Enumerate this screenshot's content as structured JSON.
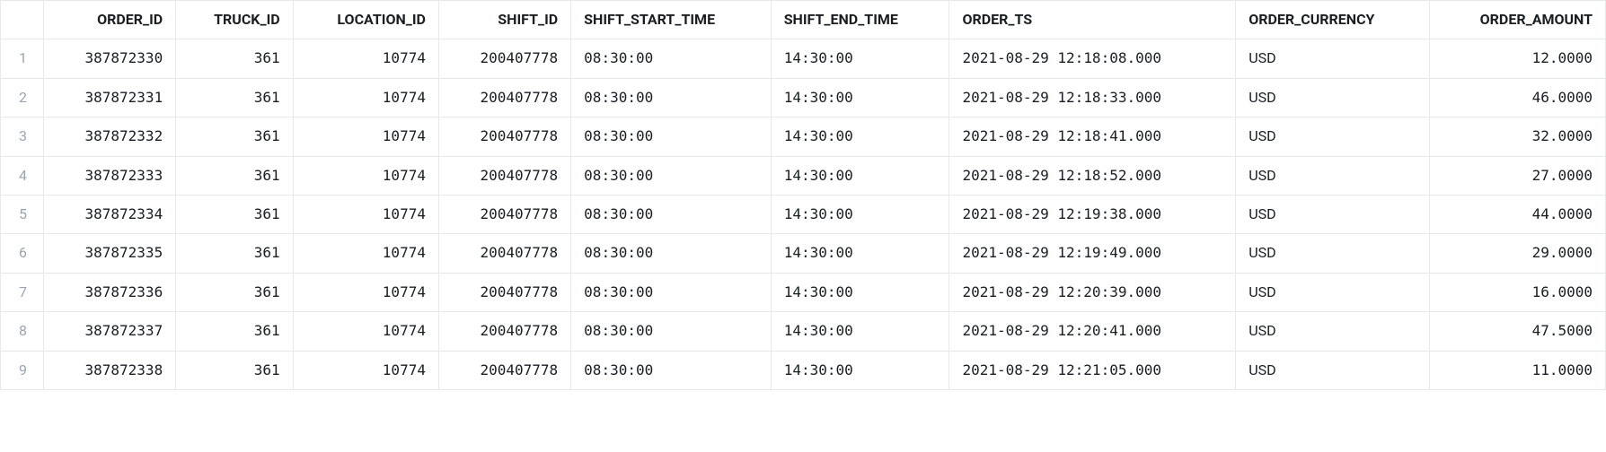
{
  "table": {
    "columns": [
      {
        "key": "ORDER_ID",
        "label": "ORDER_ID",
        "align": "num-right",
        "mono": true
      },
      {
        "key": "TRUCK_ID",
        "label": "TRUCK_ID",
        "align": "num-right",
        "mono": true
      },
      {
        "key": "LOCATION_ID",
        "label": "LOCATION_ID",
        "align": "num-right",
        "mono": true
      },
      {
        "key": "SHIFT_ID",
        "label": "SHIFT_ID",
        "align": "num-right",
        "mono": true
      },
      {
        "key": "SHIFT_START_TIME",
        "label": "SHIFT_START_TIME",
        "align": "txt-left",
        "mono": true
      },
      {
        "key": "SHIFT_END_TIME",
        "label": "SHIFT_END_TIME",
        "align": "txt-left",
        "mono": true
      },
      {
        "key": "ORDER_TS",
        "label": "ORDER_TS",
        "align": "txt-left",
        "mono": true
      },
      {
        "key": "ORDER_CURRENCY",
        "label": "ORDER_CURRENCY",
        "align": "txt-left",
        "mono": false
      },
      {
        "key": "ORDER_AMOUNT",
        "label": "ORDER_AMOUNT",
        "align": "num-right",
        "mono": true
      }
    ],
    "rows": [
      {
        "n": "1",
        "ORDER_ID": "387872330",
        "TRUCK_ID": "361",
        "LOCATION_ID": "10774",
        "SHIFT_ID": "200407778",
        "SHIFT_START_TIME": "08:30:00",
        "SHIFT_END_TIME": "14:30:00",
        "ORDER_TS": "2021-08-29 12:18:08.000",
        "ORDER_CURRENCY": "USD",
        "ORDER_AMOUNT": "12.0000"
      },
      {
        "n": "2",
        "ORDER_ID": "387872331",
        "TRUCK_ID": "361",
        "LOCATION_ID": "10774",
        "SHIFT_ID": "200407778",
        "SHIFT_START_TIME": "08:30:00",
        "SHIFT_END_TIME": "14:30:00",
        "ORDER_TS": "2021-08-29 12:18:33.000",
        "ORDER_CURRENCY": "USD",
        "ORDER_AMOUNT": "46.0000"
      },
      {
        "n": "3",
        "ORDER_ID": "387872332",
        "TRUCK_ID": "361",
        "LOCATION_ID": "10774",
        "SHIFT_ID": "200407778",
        "SHIFT_START_TIME": "08:30:00",
        "SHIFT_END_TIME": "14:30:00",
        "ORDER_TS": "2021-08-29 12:18:41.000",
        "ORDER_CURRENCY": "USD",
        "ORDER_AMOUNT": "32.0000"
      },
      {
        "n": "4",
        "ORDER_ID": "387872333",
        "TRUCK_ID": "361",
        "LOCATION_ID": "10774",
        "SHIFT_ID": "200407778",
        "SHIFT_START_TIME": "08:30:00",
        "SHIFT_END_TIME": "14:30:00",
        "ORDER_TS": "2021-08-29 12:18:52.000",
        "ORDER_CURRENCY": "USD",
        "ORDER_AMOUNT": "27.0000"
      },
      {
        "n": "5",
        "ORDER_ID": "387872334",
        "TRUCK_ID": "361",
        "LOCATION_ID": "10774",
        "SHIFT_ID": "200407778",
        "SHIFT_START_TIME": "08:30:00",
        "SHIFT_END_TIME": "14:30:00",
        "ORDER_TS": "2021-08-29 12:19:38.000",
        "ORDER_CURRENCY": "USD",
        "ORDER_AMOUNT": "44.0000"
      },
      {
        "n": "6",
        "ORDER_ID": "387872335",
        "TRUCK_ID": "361",
        "LOCATION_ID": "10774",
        "SHIFT_ID": "200407778",
        "SHIFT_START_TIME": "08:30:00",
        "SHIFT_END_TIME": "14:30:00",
        "ORDER_TS": "2021-08-29 12:19:49.000",
        "ORDER_CURRENCY": "USD",
        "ORDER_AMOUNT": "29.0000"
      },
      {
        "n": "7",
        "ORDER_ID": "387872336",
        "TRUCK_ID": "361",
        "LOCATION_ID": "10774",
        "SHIFT_ID": "200407778",
        "SHIFT_START_TIME": "08:30:00",
        "SHIFT_END_TIME": "14:30:00",
        "ORDER_TS": "2021-08-29 12:20:39.000",
        "ORDER_CURRENCY": "USD",
        "ORDER_AMOUNT": "16.0000"
      },
      {
        "n": "8",
        "ORDER_ID": "387872337",
        "TRUCK_ID": "361",
        "LOCATION_ID": "10774",
        "SHIFT_ID": "200407778",
        "SHIFT_START_TIME": "08:30:00",
        "SHIFT_END_TIME": "14:30:00",
        "ORDER_TS": "2021-08-29 12:20:41.000",
        "ORDER_CURRENCY": "USD",
        "ORDER_AMOUNT": "47.5000"
      },
      {
        "n": "9",
        "ORDER_ID": "387872338",
        "TRUCK_ID": "361",
        "LOCATION_ID": "10774",
        "SHIFT_ID": "200407778",
        "SHIFT_START_TIME": "08:30:00",
        "SHIFT_END_TIME": "14:30:00",
        "ORDER_TS": "2021-08-29 12:21:05.000",
        "ORDER_CURRENCY": "USD",
        "ORDER_AMOUNT": "11.0000"
      }
    ]
  },
  "colors": {
    "border": "#e6e8eb",
    "text": "#1a1d21",
    "rownum": "#9aa5b1",
    "bg": "#ffffff"
  }
}
